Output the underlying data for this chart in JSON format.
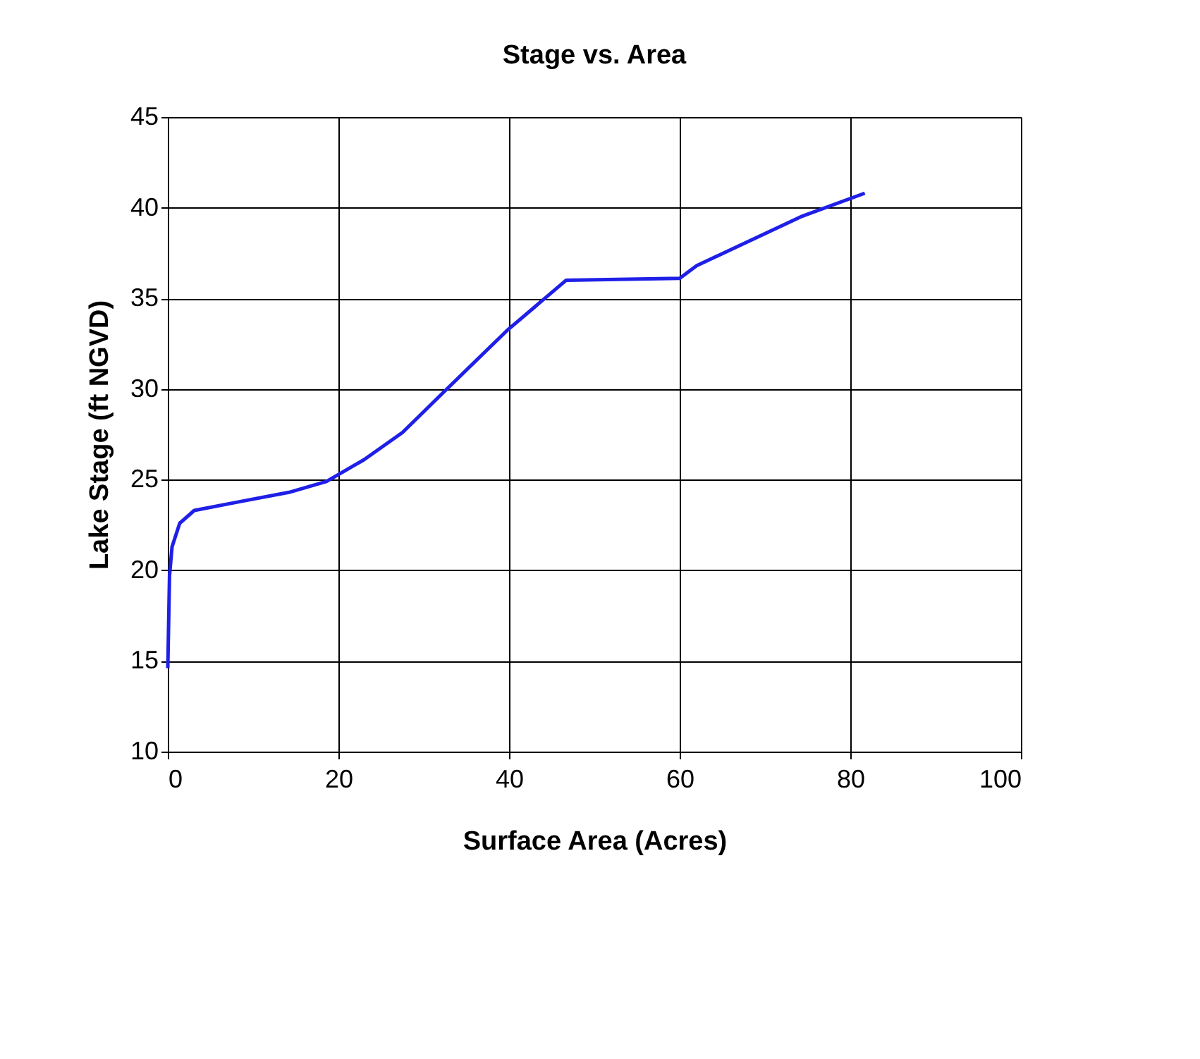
{
  "chart_data": {
    "type": "line",
    "title": "Stage vs. Area",
    "xlabel": "Surface Area (Acres)",
    "ylabel": "Lake Stage (ft NGVD)",
    "series": [
      {
        "color": "#1f1fe8",
        "x": [
          0,
          0.2,
          0.5,
          1.4,
          3.1,
          8.6,
          14.2,
          18.6,
          23,
          27.5,
          32.5,
          39.7,
          46.7,
          60,
          62,
          74.2,
          81.7
        ],
        "values": [
          14.6,
          19.7,
          21.3,
          22.6,
          23.3,
          23.8,
          24.3,
          24.9,
          26.1,
          27.6,
          29.9,
          33.2,
          36.0,
          36.1,
          36.8,
          39.5,
          40.8
        ]
      }
    ],
    "xlim": [
      0,
      100
    ],
    "xticks": [
      0,
      20,
      40,
      60,
      80,
      100
    ],
    "ylim": [
      10,
      45
    ],
    "yticks": [
      10,
      15,
      20,
      25,
      30,
      35,
      40,
      45
    ],
    "grid": true,
    "marker": "none",
    "line_style": "solid"
  }
}
